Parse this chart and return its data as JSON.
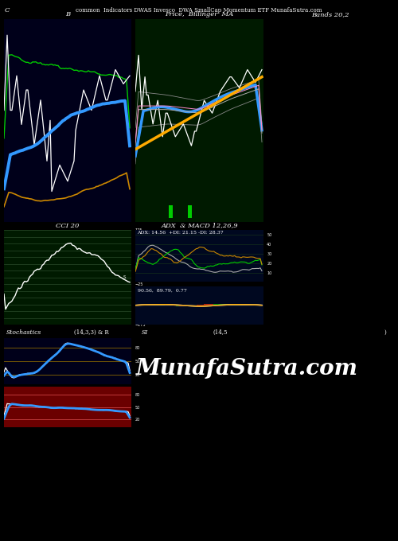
{
  "bg_color": "#000000",
  "panel1_bg": "#00001a",
  "panel2_bg": "#001a00",
  "panel4_bg": "#001a00",
  "panel5a_bg": "#000820",
  "panel5b_bg": "#000820",
  "stoch_bg": "#00001a",
  "rsi_bg": "#6b0000",
  "title_main": "common  Indicators DWAS Invesco  DWA SmallCap Momentum ETF MunafaSutra.com",
  "panel1_title": "B",
  "panel2_title": "Price,  Billinger  MA",
  "panel3_title": "Bands 20,2",
  "panel4_title": "CCI 20",
  "panel5_title": "ADX  & MACD 12,26,9",
  "panel5_subtitle": "ADX: 14.56  +DI: 21.15 -DI: 28.37",
  "panel5b_subtitle": "90.56,  89.79,  0.77",
  "stoch_title": "Stochastics",
  "stoch_params": "(14,3,3) & R",
  "si_title": "SI",
  "si_params": "(14,5",
  "si_end": ")",
  "watermark": "MunafaSutra.com"
}
